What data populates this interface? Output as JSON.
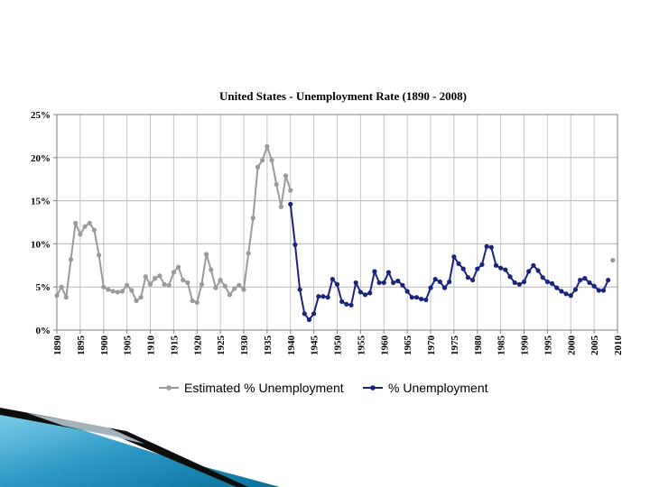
{
  "chart_data": {
    "type": "line",
    "title": "United States - Unemployment Rate (1890 - 2008)",
    "xlabel": "",
    "ylabel": "",
    "xlim": [
      1890,
      2010
    ],
    "ylim": [
      0,
      25
    ],
    "y_ticks": [
      "0%",
      "5%",
      "10%",
      "15%",
      "20%",
      "25%"
    ],
    "x_ticks": [
      "1890",
      "1895",
      "1900",
      "1905",
      "1910",
      "1915",
      "1920",
      "1925",
      "1930",
      "1935",
      "1940",
      "1945",
      "1950",
      "1955",
      "1960",
      "1965",
      "1970",
      "1975",
      "1980",
      "1985",
      "1990",
      "1995",
      "2000",
      "2005",
      "2010"
    ],
    "grid": true,
    "legend_position": "bottom",
    "series": [
      {
        "name": "Estimated % Unemployment",
        "color": "#9a9a9a",
        "x": [
          1890,
          1891,
          1892,
          1893,
          1894,
          1895,
          1896,
          1897,
          1898,
          1899,
          1900,
          1901,
          1902,
          1903,
          1904,
          1905,
          1906,
          1907,
          1908,
          1909,
          1910,
          1911,
          1912,
          1913,
          1914,
          1915,
          1916,
          1917,
          1918,
          1919,
          1920,
          1921,
          1922,
          1923,
          1924,
          1925,
          1926,
          1927,
          1928,
          1929,
          1930,
          1931,
          1932,
          1933,
          1934,
          1935,
          1936,
          1937,
          1938,
          1939,
          1940,
          2009
        ],
        "values": [
          4.0,
          5.0,
          3.8,
          8.2,
          12.4,
          11.1,
          12.0,
          12.4,
          11.6,
          8.7,
          5.0,
          4.7,
          4.5,
          4.4,
          4.5,
          5.2,
          4.6,
          3.4,
          3.8,
          6.2,
          5.3,
          6.0,
          6.3,
          5.3,
          5.2,
          6.7,
          7.3,
          5.8,
          5.5,
          3.4,
          3.2,
          5.3,
          8.8,
          7.0,
          4.9,
          5.8,
          5.1,
          4.1,
          4.8,
          5.2,
          4.7,
          8.9,
          13.0,
          18.9,
          19.7,
          21.3,
          19.7,
          16.9,
          14.3,
          17.9,
          16.2,
          8.1
        ]
      },
      {
        "name": "% Unemployment",
        "color": "#1a237e",
        "x": [
          1940,
          1941,
          1942,
          1943,
          1944,
          1945,
          1946,
          1947,
          1948,
          1949,
          1950,
          1951,
          1952,
          1953,
          1954,
          1955,
          1956,
          1957,
          1958,
          1959,
          1960,
          1961,
          1962,
          1963,
          1964,
          1965,
          1966,
          1967,
          1968,
          1969,
          1970,
          1971,
          1972,
          1973,
          1974,
          1975,
          1976,
          1977,
          1978,
          1979,
          1980,
          1981,
          1982,
          1983,
          1984,
          1985,
          1986,
          1987,
          1988,
          1989,
          1990,
          1991,
          1992,
          1993,
          1994,
          1995,
          1996,
          1997,
          1998,
          1999,
          2000,
          2001,
          2002,
          2003,
          2004,
          2005,
          2006,
          2007,
          2008
        ],
        "values": [
          14.6,
          9.9,
          4.7,
          1.9,
          1.2,
          1.9,
          3.9,
          3.9,
          3.8,
          5.9,
          5.3,
          3.3,
          3.0,
          2.9,
          5.5,
          4.4,
          4.1,
          4.3,
          6.8,
          5.5,
          5.5,
          6.7,
          5.5,
          5.7,
          5.2,
          4.5,
          3.8,
          3.8,
          3.6,
          3.5,
          4.9,
          5.9,
          5.6,
          4.9,
          5.6,
          8.5,
          7.7,
          7.1,
          6.1,
          5.8,
          7.1,
          7.6,
          9.7,
          9.6,
          7.5,
          7.2,
          7.0,
          6.2,
          5.5,
          5.3,
          5.6,
          6.8,
          7.5,
          6.9,
          6.1,
          5.6,
          5.4,
          4.9,
          4.5,
          4.2,
          4.0,
          4.7,
          5.8,
          6.0,
          5.5,
          5.1,
          4.6,
          4.6,
          5.8
        ]
      }
    ]
  }
}
